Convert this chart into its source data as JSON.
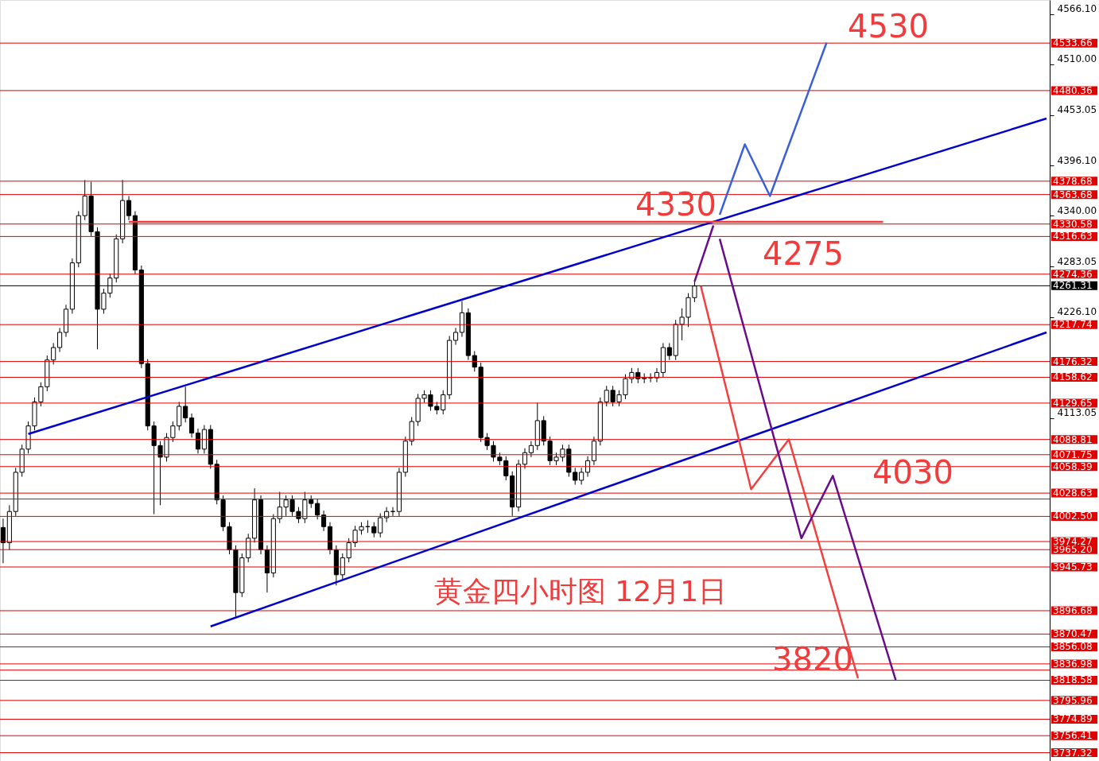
{
  "chart_data": {
    "type": "candlestick",
    "title": "黄金四小时图  12月1日",
    "categories": [
      null,
      null,
      null,
      null,
      null,
      null,
      null,
      null,
      null,
      null,
      null,
      null,
      null,
      null,
      null,
      null,
      null,
      null,
      null,
      null,
      null,
      null,
      null,
      null,
      null,
      null,
      null,
      null,
      null,
      null,
      null,
      null,
      null,
      null,
      null,
      null,
      null,
      null,
      null,
      null,
      null,
      null,
      null,
      null,
      null,
      null,
      null,
      null,
      null,
      null,
      null,
      null,
      null,
      null,
      null,
      null,
      null,
      null,
      null,
      null,
      null,
      null,
      null,
      null,
      null,
      null,
      null,
      null,
      null,
      null,
      null,
      null,
      null,
      null,
      null,
      null,
      null,
      null,
      null,
      null,
      null,
      null,
      null,
      null,
      null,
      null,
      null,
      null,
      null,
      null,
      null,
      null,
      null,
      null,
      null,
      null,
      null,
      null,
      null,
      null,
      null,
      null,
      null,
      null,
      null,
      null,
      null,
      null,
      null,
      null,
      null,
      null,
      null,
      null,
      null,
      null,
      null,
      null,
      null,
      null,
      null,
      null,
      null,
      null,
      null,
      null,
      null,
      null,
      null,
      null,
      null,
      null,
      null,
      null,
      null,
      null,
      null,
      null,
      null,
      null,
      null,
      null,
      null,
      null,
      null,
      null,
      null,
      null,
      null,
      null,
      null,
      null,
      null,
      null,
      null,
      null,
      null,
      null,
      null,
      null,
      null,
      null,
      null,
      null,
      null,
      null,
      null
    ],
    "ohlc": [
      [
        3990,
        4000,
        3950,
        3973
      ],
      [
        3973,
        4015,
        3965,
        4008
      ],
      [
        4008,
        4057,
        4003,
        4052
      ],
      [
        4052,
        4083,
        4047,
        4078
      ],
      [
        4078,
        4109,
        4073,
        4104
      ],
      [
        4104,
        4136,
        4099,
        4131
      ],
      [
        4131,
        4153,
        4126,
        4148
      ],
      [
        4148,
        4183,
        4143,
        4178
      ],
      [
        4178,
        4197,
        4173,
        4192
      ],
      [
        4192,
        4214,
        4187,
        4209
      ],
      [
        4209,
        4240,
        4204,
        4235
      ],
      [
        4235,
        4292,
        4230,
        4287
      ],
      [
        4287,
        4345,
        4282,
        4340
      ],
      [
        4340,
        4380,
        4335,
        4362
      ],
      [
        4362,
        4378,
        4317,
        4322
      ],
      [
        4322,
        4327,
        4190,
        4235
      ],
      [
        4235,
        4258,
        4230,
        4253
      ],
      [
        4253,
        4275,
        4248,
        4270
      ],
      [
        4270,
        4319,
        4265,
        4314
      ],
      [
        4314,
        4380,
        4309,
        4357
      ],
      [
        4357,
        4362,
        4335,
        4340
      ],
      [
        4340,
        4345,
        4274,
        4279
      ],
      [
        4279,
        4284,
        4169,
        4174
      ],
      [
        4174,
        4179,
        4099,
        4104
      ],
      [
        4104,
        4109,
        4005,
        4082
      ],
      [
        4082,
        4087,
        4015,
        4069
      ],
      [
        4069,
        4096,
        4064,
        4091
      ],
      [
        4091,
        4109,
        4086,
        4104
      ],
      [
        4104,
        4131,
        4099,
        4126
      ],
      [
        4126,
        4148,
        4108,
        4113
      ],
      [
        4113,
        4118,
        4091,
        4096
      ],
      [
        4096,
        4101,
        4073,
        4078
      ],
      [
        4078,
        4105,
        4073,
        4100
      ],
      [
        4100,
        4105,
        4056,
        4061
      ],
      [
        4061,
        4066,
        4016,
        4021
      ],
      [
        4021,
        4026,
        3986,
        3991
      ],
      [
        3991,
        3996,
        3960,
        3965
      ],
      [
        3965,
        3970,
        3890,
        3917
      ],
      [
        3917,
        3961,
        3912,
        3956
      ],
      [
        3956,
        3983,
        3951,
        3978
      ],
      [
        3978,
        4034,
        3973,
        4021
      ],
      [
        4021,
        4026,
        3960,
        3965
      ],
      [
        3965,
        3970,
        3917,
        3939
      ],
      [
        3939,
        4005,
        3934,
        4000
      ],
      [
        4000,
        4030,
        3995,
        4013
      ],
      [
        4013,
        4026,
        4003,
        4021
      ],
      [
        4021,
        4026,
        4003,
        4008
      ],
      [
        4008,
        4013,
        3995,
        4000
      ],
      [
        4000,
        4030,
        3995,
        4021
      ],
      [
        4021,
        4026,
        4012,
        4017
      ],
      [
        4017,
        4022,
        3999,
        4004
      ],
      [
        4004,
        4009,
        3986,
        3991
      ],
      [
        3991,
        3996,
        3960,
        3965
      ],
      [
        3965,
        3970,
        3925,
        3937
      ],
      [
        3937,
        3961,
        3932,
        3956
      ],
      [
        3956,
        3978,
        3951,
        3973
      ],
      [
        3973,
        3992,
        3968,
        3987
      ],
      [
        3987,
        3996,
        3982,
        3991
      ],
      [
        3991,
        3998,
        3984,
        3991
      ],
      [
        3991,
        3996,
        3979,
        3984
      ],
      [
        3984,
        4006,
        3979,
        4001
      ],
      [
        4001,
        4013,
        3996,
        4008
      ],
      [
        4008,
        4013,
        4003,
        4008
      ],
      [
        4008,
        4057,
        4003,
        4052
      ],
      [
        4052,
        4092,
        4047,
        4087
      ],
      [
        4087,
        4114,
        4082,
        4109
      ],
      [
        4109,
        4140,
        4104,
        4135
      ],
      [
        4135,
        4144,
        4130,
        4139
      ],
      [
        4139,
        4144,
        4121,
        4126
      ],
      [
        4126,
        4131,
        4117,
        4122
      ],
      [
        4122,
        4144,
        4117,
        4139
      ],
      [
        4139,
        4205,
        4134,
        4200
      ],
      [
        4200,
        4214,
        4195,
        4209
      ],
      [
        4209,
        4244,
        4204,
        4231
      ],
      [
        4231,
        4236,
        4178,
        4183
      ],
      [
        4183,
        4188,
        4165,
        4170
      ],
      [
        4170,
        4175,
        4086,
        4091
      ],
      [
        4091,
        4096,
        4077,
        4082
      ],
      [
        4082,
        4087,
        4064,
        4069
      ],
      [
        4069,
        4074,
        4060,
        4065
      ],
      [
        4065,
        4070,
        4043,
        4048
      ],
      [
        4048,
        4053,
        4003,
        4013
      ],
      [
        4013,
        4066,
        4008,
        4061
      ],
      [
        4061,
        4079,
        4056,
        4074
      ],
      [
        4074,
        4087,
        4069,
        4082
      ],
      [
        4082,
        4130,
        4077,
        4110
      ],
      [
        4110,
        4115,
        4082,
        4087
      ],
      [
        4087,
        4092,
        4060,
        4065
      ],
      [
        4065,
        4074,
        4060,
        4069
      ],
      [
        4069,
        4083,
        4064,
        4078
      ],
      [
        4078,
        4083,
        4047,
        4052
      ],
      [
        4052,
        4057,
        4038,
        4043
      ],
      [
        4043,
        4057,
        4038,
        4052
      ],
      [
        4052,
        4070,
        4047,
        4065
      ],
      [
        4065,
        4092,
        4060,
        4087
      ],
      [
        4087,
        4136,
        4082,
        4131
      ],
      [
        4131,
        4149,
        4126,
        4144
      ],
      [
        4144,
        4149,
        4126,
        4131
      ],
      [
        4131,
        4144,
        4126,
        4139
      ],
      [
        4139,
        4162,
        4134,
        4157
      ],
      [
        4157,
        4169,
        4152,
        4164
      ],
      [
        4164,
        4169,
        4152,
        4157
      ],
      [
        4157,
        4163,
        4152,
        4158
      ],
      [
        4158,
        4163,
        4153,
        4158
      ],
      [
        4158,
        4169,
        4153,
        4164
      ],
      [
        4164,
        4197,
        4159,
        4192
      ],
      [
        4192,
        4197,
        4178,
        4183
      ],
      [
        4183,
        4223,
        4178,
        4218
      ],
      [
        4218,
        4236,
        4200,
        4226
      ],
      [
        4226,
        4253,
        4215,
        4248
      ],
      [
        4248,
        4266,
        4243,
        4261
      ],
      null,
      null,
      null,
      null,
      null,
      null,
      null,
      null,
      null,
      null,
      null,
      null,
      null,
      null,
      null,
      null,
      null,
      null,
      null,
      null,
      null,
      null,
      null,
      null,
      null,
      null,
      null,
      null,
      null,
      null,
      null,
      null,
      null,
      null,
      null,
      null,
      null,
      null,
      null,
      null,
      null,
      null,
      null,
      null,
      null,
      null,
      null,
      null,
      null,
      null,
      null,
      null,
      null,
      null,
      null,
      null
    ],
    "series": [
      {
        "type": "line",
        "color": "#0000cc",
        "values": [
          null,
          null,
          null,
          null,
          4095,
          null,
          null,
          null,
          null,
          null,
          null,
          null,
          null,
          null,
          null,
          null,
          null,
          null,
          null,
          null,
          null,
          null,
          null,
          null,
          null,
          null,
          null,
          null,
          null,
          null,
          null,
          null,
          null,
          null,
          null,
          null,
          null,
          null,
          null,
          null,
          null,
          null,
          null,
          null,
          null,
          null,
          null,
          null,
          null,
          null,
          null,
          null,
          null,
          null,
          null,
          null,
          null,
          null,
          null,
          null,
          null,
          null,
          null,
          null,
          null,
          null,
          null,
          null,
          null,
          null,
          null,
          null,
          null,
          null,
          null,
          null,
          null,
          null,
          null,
          null,
          null,
          null,
          null,
          null,
          null,
          null,
          null,
          null,
          null,
          null,
          null,
          null,
          null,
          null,
          null,
          null,
          null,
          null,
          null,
          null,
          null,
          null,
          null,
          null,
          null,
          null,
          null,
          null,
          null,
          null,
          null,
          null,
          null,
          null,
          null,
          null,
          null,
          null,
          null,
          null,
          null,
          null,
          null,
          null,
          null,
          null,
          null,
          null,
          null,
          null,
          null,
          null,
          null,
          null,
          null,
          null,
          null,
          null,
          null,
          null,
          null,
          null,
          null,
          null,
          null,
          null,
          null,
          null,
          null,
          null,
          null,
          null,
          null,
          null,
          null,
          null,
          null,
          null,
          null,
          null,
          null,
          null,
          null,
          null,
          null,
          null,
          4449
        ]
      },
      {
        "type": "line",
        "color": "#0000cc",
        "values": [
          null,
          null,
          null,
          null,
          null,
          null,
          null,
          null,
          null,
          null,
          null,
          null,
          null,
          null,
          null,
          null,
          null,
          null,
          null,
          null,
          null,
          null,
          null,
          null,
          null,
          null,
          null,
          null,
          null,
          null,
          null,
          null,
          null,
          3879,
          null,
          null,
          null,
          null,
          null,
          null,
          null,
          null,
          null,
          null,
          null,
          null,
          null,
          null,
          null,
          null,
          null,
          null,
          null,
          null,
          null,
          null,
          null,
          null,
          null,
          null,
          null,
          null,
          null,
          null,
          null,
          null,
          null,
          null,
          null,
          null,
          null,
          null,
          null,
          null,
          null,
          null,
          null,
          null,
          null,
          null,
          null,
          null,
          null,
          null,
          null,
          null,
          null,
          null,
          null,
          null,
          null,
          null,
          null,
          null,
          null,
          null,
          null,
          null,
          null,
          null,
          null,
          null,
          null,
          null,
          null,
          null,
          null,
          null,
          null,
          null,
          null,
          null,
          null,
          null,
          null,
          null,
          null,
          null,
          null,
          null,
          null,
          null,
          null,
          null,
          null,
          null,
          null,
          null,
          null,
          null,
          null,
          null,
          null,
          null,
          null,
          null,
          null,
          null,
          null,
          null,
          null,
          null,
          null,
          null,
          null,
          null,
          null,
          null,
          null,
          null,
          null,
          null,
          null,
          null,
          null,
          null,
          null,
          null,
          null,
          null,
          null,
          null,
          null,
          null,
          null,
          null,
          4209
        ]
      },
      {
        "type": "line",
        "color": "#f03c3c",
        "values": [
          null,
          null,
          null,
          null,
          null,
          null,
          null,
          null,
          null,
          null,
          null,
          null,
          null,
          null,
          null,
          null,
          null,
          null,
          null,
          null,
          4333,
          null,
          null,
          null,
          null,
          null,
          null,
          null,
          null,
          null,
          null,
          null,
          null,
          null,
          null,
          null,
          null,
          null,
          null,
          null,
          null,
          null,
          null,
          null,
          null,
          null,
          null,
          null,
          null,
          null,
          null,
          null,
          null,
          null,
          null,
          null,
          null,
          null,
          null,
          null,
          null,
          null,
          null,
          null,
          null,
          null,
          null,
          null,
          null,
          null,
          null,
          null,
          null,
          null,
          null,
          null,
          null,
          null,
          null,
          null,
          null,
          null,
          null,
          null,
          null,
          null,
          null,
          null,
          null,
          null,
          null,
          null,
          null,
          null,
          null,
          null,
          null,
          null,
          null,
          null,
          null,
          null,
          null,
          null,
          null,
          null,
          null,
          null,
          null,
          null,
          null,
          null,
          null,
          null,
          null,
          null,
          null,
          null,
          null,
          null,
          null,
          null,
          null,
          null,
          null,
          null,
          null,
          null,
          null,
          null,
          null,
          null,
          null,
          null,
          null,
          null,
          null,
          null,
          null,
          null,
          4333,
          null,
          null,
          null,
          null,
          null,
          null,
          null,
          null,
          null,
          null,
          null,
          null,
          null,
          null,
          null,
          null,
          null,
          null,
          null,
          null,
          null,
          null,
          null,
          null,
          null,
          null
        ]
      },
      {
        "type": "line",
        "color": "#6a0d8a",
        "values": [
          null,
          null,
          null,
          null,
          null,
          null,
          null,
          null,
          null,
          null,
          null,
          null,
          null,
          null,
          null,
          null,
          null,
          null,
          null,
          null,
          null,
          null,
          null,
          null,
          null,
          null,
          null,
          null,
          null,
          null,
          null,
          null,
          null,
          null,
          null,
          null,
          null,
          null,
          null,
          null,
          null,
          null,
          null,
          null,
          null,
          null,
          null,
          null,
          null,
          null,
          null,
          null,
          null,
          null,
          null,
          null,
          null,
          null,
          null,
          null,
          null,
          null,
          null,
          null,
          null,
          null,
          null,
          null,
          null,
          null,
          null,
          null,
          null,
          null,
          null,
          null,
          null,
          null,
          null,
          null,
          null,
          null,
          null,
          null,
          null,
          null,
          null,
          null,
          null,
          null,
          null,
          null,
          null,
          null,
          null,
          null,
          null,
          null,
          null,
          null,
          null,
          null,
          null,
          null,
          null,
          null,
          null,
          null,
          null,
          null,
          4266,
          null,
          null,
          4329,
          null,
          null,
          null,
          null,
          null,
          null,
          null,
          null,
          null,
          null,
          null,
          null,
          null,
          null,
          null,
          null,
          null,
          null,
          null,
          null,
          null,
          null,
          null,
          null,
          null,
          null,
          null,
          null,
          null,
          null,
          null,
          null,
          null,
          null,
          null,
          null,
          null,
          null,
          null,
          null,
          null,
          null,
          null,
          null,
          null,
          null,
          null,
          null,
          null,
          null,
          null,
          null,
          null
        ]
      },
      {
        "type": "line",
        "color": "#3a5fd9",
        "values": [
          null,
          null,
          null,
          null,
          null,
          null,
          null,
          null,
          null,
          null,
          null,
          null,
          null,
          null,
          null,
          null,
          null,
          null,
          null,
          null,
          null,
          null,
          null,
          null,
          null,
          null,
          null,
          null,
          null,
          null,
          null,
          null,
          null,
          null,
          null,
          null,
          null,
          null,
          null,
          null,
          null,
          null,
          null,
          null,
          null,
          null,
          null,
          null,
          null,
          null,
          null,
          null,
          null,
          null,
          null,
          null,
          null,
          null,
          null,
          null,
          null,
          null,
          null,
          null,
          null,
          null,
          null,
          null,
          null,
          null,
          null,
          null,
          null,
          null,
          null,
          null,
          null,
          null,
          null,
          null,
          null,
          null,
          null,
          null,
          null,
          null,
          null,
          null,
          null,
          null,
          null,
          null,
          null,
          null,
          null,
          null,
          null,
          null,
          null,
          null,
          null,
          null,
          null,
          null,
          null,
          null,
          null,
          null,
          null,
          null,
          null,
          null,
          null,
          null,
          4341,
          null,
          null,
          null,
          4420,
          null,
          null,
          null,
          4362,
          null,
          null,
          null,
          null,
          null,
          null,
          null,
          null,
          4534,
          null,
          null,
          null,
          null,
          null,
          null,
          null,
          null,
          null,
          null,
          null,
          null,
          null,
          null,
          null,
          null,
          null,
          null,
          null,
          null,
          null,
          null,
          null,
          null,
          null,
          null,
          null,
          null,
          null,
          null,
          null,
          null,
          null,
          null,
          null
        ]
      },
      {
        "type": "line",
        "color": "#f04040",
        "values": [
          null,
          null,
          null,
          null,
          null,
          null,
          null,
          null,
          null,
          null,
          null,
          null,
          null,
          null,
          null,
          null,
          null,
          null,
          null,
          null,
          null,
          null,
          null,
          null,
          null,
          null,
          null,
          null,
          null,
          null,
          null,
          null,
          null,
          null,
          null,
          null,
          null,
          null,
          null,
          null,
          null,
          null,
          null,
          null,
          null,
          null,
          null,
          null,
          null,
          null,
          null,
          null,
          null,
          null,
          null,
          null,
          null,
          null,
          null,
          null,
          null,
          null,
          null,
          null,
          null,
          null,
          null,
          null,
          null,
          null,
          null,
          null,
          null,
          null,
          null,
          null,
          null,
          null,
          null,
          null,
          null,
          null,
          null,
          null,
          null,
          null,
          null,
          null,
          null,
          null,
          null,
          null,
          null,
          null,
          null,
          null,
          null,
          null,
          null,
          null,
          null,
          null,
          null,
          null,
          null,
          null,
          null,
          null,
          null,
          null,
          null,
          4261,
          null,
          null,
          null,
          null,
          null,
          null,
          null,
          4033,
          null,
          null,
          null,
          null,
          null,
          4089,
          null,
          null,
          null,
          null,
          null,
          null,
          null,
          null,
          null,
          null,
          3821,
          null,
          null,
          null,
          null,
          null,
          null,
          null,
          null,
          null,
          null,
          null,
          null,
          null,
          null,
          null,
          null,
          null,
          null,
          null,
          null,
          null,
          null,
          null,
          null,
          null,
          null,
          null,
          null,
          null,
          null
        ]
      },
      {
        "type": "line",
        "color": "#6a0d8a",
        "values": [
          null,
          null,
          null,
          null,
          null,
          null,
          null,
          null,
          null,
          null,
          null,
          null,
          null,
          null,
          null,
          null,
          null,
          null,
          null,
          null,
          null,
          null,
          null,
          null,
          null,
          null,
          null,
          null,
          null,
          null,
          null,
          null,
          null,
          null,
          null,
          null,
          null,
          null,
          null,
          null,
          null,
          null,
          null,
          null,
          null,
          null,
          null,
          null,
          null,
          null,
          null,
          null,
          null,
          null,
          null,
          null,
          null,
          null,
          null,
          null,
          null,
          null,
          null,
          null,
          null,
          null,
          null,
          null,
          null,
          null,
          null,
          null,
          null,
          null,
          null,
          null,
          null,
          null,
          null,
          null,
          null,
          null,
          null,
          null,
          null,
          null,
          null,
          null,
          null,
          null,
          null,
          null,
          null,
          null,
          null,
          null,
          null,
          null,
          null,
          null,
          null,
          null,
          null,
          null,
          null,
          null,
          null,
          null,
          null,
          null,
          null,
          null,
          null,
          null,
          4314,
          null,
          null,
          null,
          null,
          null,
          null,
          null,
          null,
          null,
          null,
          null,
          null,
          3978,
          null,
          null,
          null,
          null,
          4048,
          null,
          null,
          null,
          null,
          null,
          null,
          null,
          null,
          null,
          3819,
          null,
          null,
          null,
          null,
          null,
          null,
          null,
          null,
          null,
          null,
          null,
          null,
          null,
          null,
          null,
          null,
          null,
          null,
          null,
          null,
          null,
          null,
          null,
          null
        ]
      }
    ],
    "ylim": [
      3728,
      4582
    ],
    "yticks": [
      {
        "value": 4566.1,
        "label": "4566.10"
      },
      {
        "value": 4510,
        "label": "4510.00"
      },
      {
        "value": 4453.05,
        "label": "4453.05"
      },
      {
        "value": 4396.1,
        "label": "4396.10"
      },
      {
        "value": 4340,
        "label": "4340.00"
      },
      {
        "value": 4283.05,
        "label": "4283.05"
      },
      {
        "value": 4226.1,
        "label": "4226.10"
      },
      {
        "value": 4113.05,
        "label": "4113.05"
      }
    ],
    "ref_lines": [
      {
        "axis": "y",
        "value": 4533.66,
        "label": "4533.66",
        "color": "#e00000"
      },
      {
        "axis": "y",
        "value": 4480.36,
        "label": "4480.36",
        "color": "#e00000"
      },
      {
        "axis": "y",
        "value": 4378.68,
        "label": "4378.68",
        "color": "#e00000"
      },
      {
        "axis": "y",
        "value": 4363.68,
        "label": "4363.68",
        "color": "#e00000"
      },
      {
        "axis": "y",
        "value": 4330.58,
        "label": "4330.58",
        "color": "#e00000"
      },
      {
        "axis": "y",
        "value": 4316.63,
        "label": "4316.63",
        "color": "#e00000"
      },
      {
        "axis": "y",
        "value": 4274.36,
        "label": "4274.36",
        "color": "#e00000"
      },
      {
        "axis": "y",
        "value": 4261.31,
        "label": "4261.31",
        "color": "#000000"
      },
      {
        "axis": "y",
        "value": 4217.74,
        "label": "4217.74",
        "color": "#e00000"
      },
      {
        "axis": "y",
        "value": 4176.32,
        "label": "4176.32",
        "color": "#e00000"
      },
      {
        "axis": "y",
        "value": 4158.62,
        "label": "4158.62",
        "color": "#e00000"
      },
      {
        "axis": "y",
        "value": 4129.65,
        "label": "4129.65",
        "color": "#e00000"
      },
      {
        "axis": "y",
        "value": 4088.81,
        "label": "4088.81",
        "color": "#e00000"
      },
      {
        "axis": "y",
        "value": 4071.75,
        "label": "4071.75",
        "color": "#e00000"
      },
      {
        "axis": "y",
        "value": 4058.39,
        "label": "4058.39",
        "color": "#e00000"
      },
      {
        "axis": "y",
        "value": 4028.63,
        "label": "4028.63",
        "color": "#e00000"
      },
      {
        "axis": "y",
        "value": 4022,
        "label": null,
        "color": "#e00000"
      },
      {
        "axis": "y",
        "value": 4002.5,
        "label": "4002.50",
        "color": "#e00000"
      },
      {
        "axis": "y",
        "value": 3974.27,
        "label": "3974.27",
        "color": "#e00000"
      },
      {
        "axis": "y",
        "value": 3965.2,
        "label": "3965.20",
        "color": "#e00000"
      },
      {
        "axis": "y",
        "value": 3945.73,
        "label": "3945.73",
        "color": "#e00000"
      },
      {
        "axis": "y",
        "value": 3896.68,
        "label": "3896.68",
        "color": "#e00000"
      },
      {
        "axis": "y",
        "value": 3870.47,
        "label": "3870.47",
        "color": "#e00000"
      },
      {
        "axis": "y",
        "value": 3856.08,
        "label": "3856.08",
        "color": "#e00000"
      },
      {
        "axis": "y",
        "value": 3836.98,
        "label": "3836.98",
        "color": "#e00000"
      },
      {
        "axis": "y",
        "value": 3830,
        "label": null,
        "color": "#e00000"
      },
      {
        "axis": "y",
        "value": 3818.58,
        "label": "3818.58",
        "color": "#e00000"
      },
      {
        "axis": "y",
        "value": 3795.96,
        "label": "3795.96",
        "color": "#e00000"
      },
      {
        "axis": "y",
        "value": 3774.89,
        "label": "3774.89",
        "color": "#e00000"
      },
      {
        "axis": "y",
        "value": 3756.41,
        "label": "3756.41",
        "color": "#e00000"
      },
      {
        "axis": "y",
        "value": 3737.32,
        "label": "3737.32",
        "color": "#e00000"
      }
    ],
    "annotations": [
      {
        "text": "4530",
        "y": 4530
      },
      {
        "text": "4330",
        "y": 4330
      },
      {
        "text": "4275",
        "y": 4275
      },
      {
        "text": "4030",
        "y": 4030
      },
      {
        "text": "3820",
        "y": 3820
      }
    ],
    "tick_labels": "y",
    "grid": false,
    "marker": "none",
    "line_style": "solid"
  }
}
